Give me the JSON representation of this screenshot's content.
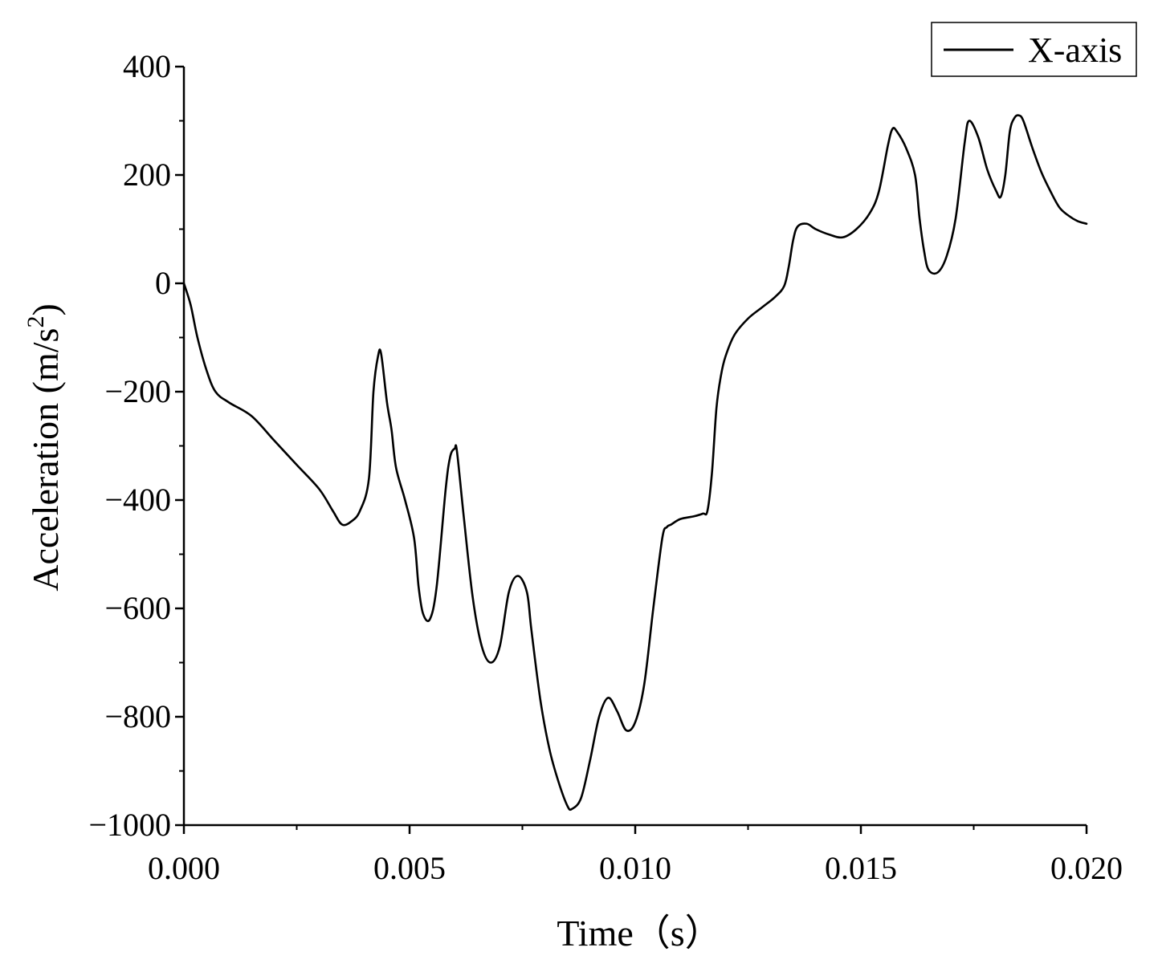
{
  "chart_data": {
    "type": "line",
    "title": "",
    "xlabel": "Time（s）",
    "ylabel_main": "Acceleration (m/s",
    "ylabel_sup": "2",
    "ylabel_end": ")",
    "xlim": [
      0.0,
      0.02
    ],
    "ylim": [
      -1000,
      400
    ],
    "x_ticks": [
      0.0,
      0.005,
      0.01,
      0.015,
      0.02
    ],
    "x_tick_labels": [
      "0.000",
      "0.005",
      "0.010",
      "0.015",
      "0.020"
    ],
    "y_ticks": [
      -1000,
      -800,
      -600,
      -400,
      -200,
      0,
      200,
      400
    ],
    "y_tick_labels": [
      "−1000",
      "−800",
      "−600",
      "−400",
      "−200",
      "0",
      "200",
      "400"
    ],
    "grid": false,
    "legend_position": "top-right",
    "series": [
      {
        "name": "X-axis",
        "color": "#000000",
        "x": [
          0.0,
          0.00015,
          0.0003,
          0.0005,
          0.0007,
          0.001,
          0.0015,
          0.002,
          0.0025,
          0.003,
          0.0033,
          0.0035,
          0.0037,
          0.0039,
          0.0041,
          0.0042,
          0.0043,
          0.00437,
          0.0045,
          0.0046,
          0.0047,
          0.0049,
          0.0051,
          0.0052,
          0.0053,
          0.00545,
          0.0056,
          0.0058,
          0.0059,
          0.006,
          0.00605,
          0.0062,
          0.0064,
          0.0066,
          0.0068,
          0.007,
          0.0072,
          0.0074,
          0.0076,
          0.0077,
          0.0079,
          0.0081,
          0.0083,
          0.0085,
          0.0086,
          0.0088,
          0.009,
          0.0092,
          0.0094,
          0.0096,
          0.0098,
          0.01,
          0.0102,
          0.0104,
          0.0106,
          0.0107,
          0.0108,
          0.011,
          0.0113,
          0.0115,
          0.0116,
          0.0117,
          0.0118,
          0.0119,
          0.012,
          0.0122,
          0.0125,
          0.0128,
          0.0131,
          0.0133,
          0.0134,
          0.0135,
          0.0136,
          0.0138,
          0.014,
          0.0143,
          0.0146,
          0.0149,
          0.0152,
          0.0154,
          0.0156,
          0.0157,
          0.0158,
          0.016,
          0.0162,
          0.0163,
          0.0164,
          0.0165,
          0.0167,
          0.0169,
          0.0171,
          0.0173,
          0.0174,
          0.0176,
          0.0178,
          0.018,
          0.0181,
          0.0182,
          0.0183,
          0.0184,
          0.0185,
          0.0186,
          0.0188,
          0.019,
          0.0192,
          0.0194,
          0.0196,
          0.0198,
          0.02
        ],
        "y": [
          0,
          -40,
          -100,
          -160,
          -200,
          -220,
          -245,
          -290,
          -335,
          -380,
          -420,
          -445,
          -440,
          -420,
          -360,
          -200,
          -135,
          -130,
          -220,
          -270,
          -340,
          -400,
          -470,
          -560,
          -610,
          -620,
          -560,
          -380,
          -320,
          -305,
          -310,
          -430,
          -580,
          -670,
          -700,
          -670,
          -570,
          -540,
          -570,
          -640,
          -770,
          -860,
          -920,
          -965,
          -970,
          -950,
          -880,
          -800,
          -765,
          -790,
          -825,
          -810,
          -740,
          -600,
          -470,
          -450,
          -445,
          -435,
          -430,
          -425,
          -420,
          -350,
          -230,
          -170,
          -135,
          -95,
          -65,
          -45,
          -25,
          -5,
          30,
          80,
          105,
          110,
          100,
          90,
          85,
          100,
          130,
          170,
          255,
          285,
          280,
          250,
          200,
          120,
          60,
          25,
          20,
          50,
          120,
          260,
          300,
          270,
          210,
          170,
          160,
          200,
          280,
          305,
          310,
          300,
          250,
          205,
          170,
          140,
          125,
          115,
          110
        ]
      }
    ]
  }
}
